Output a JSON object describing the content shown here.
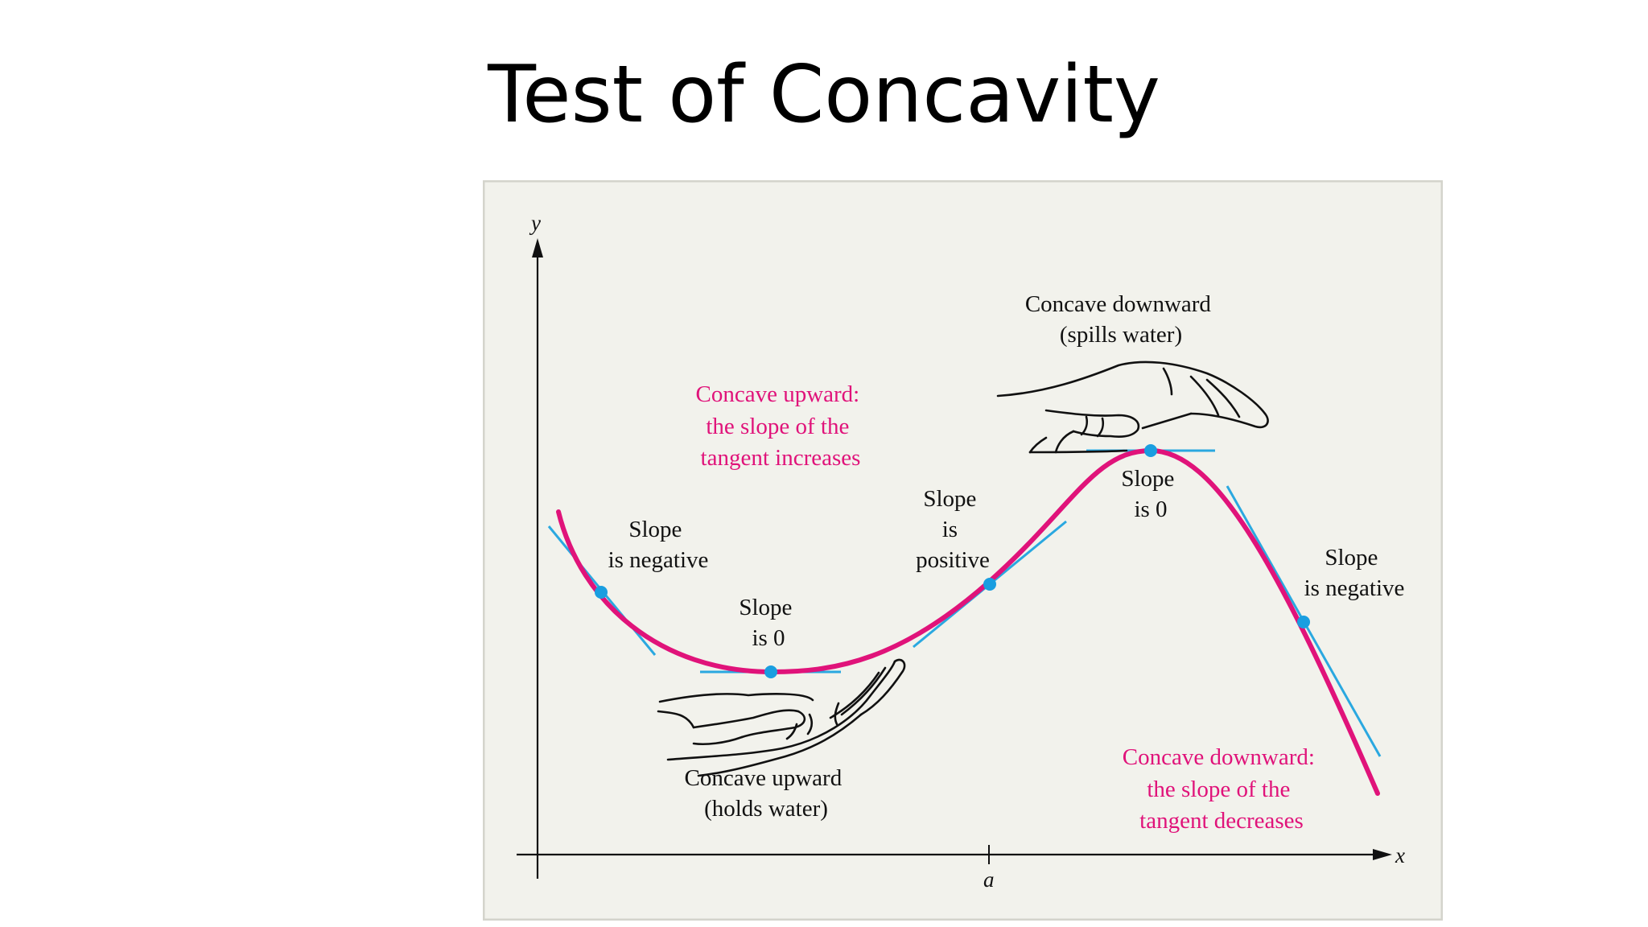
{
  "title": "Test of Concavity",
  "axes": {
    "y_label": "y",
    "x_label": "x",
    "x_tick_label": "a"
  },
  "labels": {
    "slope_neg_left": [
      "Slope",
      "is negative"
    ],
    "slope_zero_bottom": [
      "Slope",
      "is 0"
    ],
    "slope_positive": [
      "Slope",
      "is",
      "positive"
    ],
    "slope_zero_top": [
      "Slope",
      "is 0"
    ],
    "slope_neg_right": [
      "Slope",
      "is negative"
    ],
    "concave_up_caption": [
      "Concave upward:",
      "the slope of the",
      "tangent increases"
    ],
    "concave_down_caption": [
      "Concave downward:",
      "the slope of the",
      "tangent decreases"
    ],
    "holds_water": [
      "Concave upward",
      "(holds water)"
    ],
    "spills_water": [
      "Concave downward",
      "(spills water)"
    ]
  },
  "colors": {
    "curve": "#e0137a",
    "tangent": "#2aa8e0",
    "point": "#1a9ee0",
    "panel_bg": "#f2f2ec",
    "panel_border": "#d4d4cc",
    "caption_pink": "#e0137a"
  },
  "icons": {
    "lower_hand": "cupped-hand-icon",
    "upper_hand": "inverted-hand-icon"
  }
}
